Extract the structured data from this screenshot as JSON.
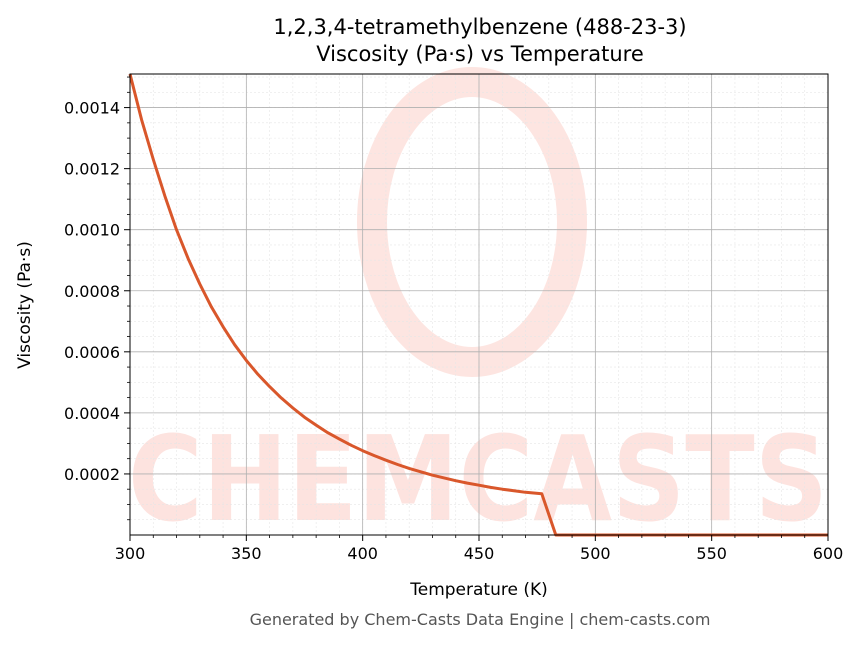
{
  "chart_data": {
    "type": "line",
    "title": "1,2,3,4-tetramethylbenzene (488-23-3)",
    "subtitle": "Viscosity (Pa·s) vs Temperature",
    "xlabel": "Temperature (K)",
    "ylabel": "Viscosity (Pa·s)",
    "xlim": [
      300,
      600
    ],
    "ylim": [
      0.0,
      0.00151
    ],
    "x_ticks": [
      300,
      350,
      400,
      450,
      500,
      550,
      600
    ],
    "x_tick_labels": [
      "300",
      "350",
      "400",
      "450",
      "500",
      "550",
      "600"
    ],
    "y_ticks": [
      0.0002,
      0.0004,
      0.0006,
      0.0008,
      0.001,
      0.0012,
      0.0014
    ],
    "y_tick_labels": [
      "0.0002",
      "0.0004",
      "0.0006",
      "0.0008",
      "0.0010",
      "0.0012",
      "0.0014"
    ],
    "grid": true,
    "series": [
      {
        "color": "#d9572b",
        "x": [
          300,
          305,
          310,
          315,
          320,
          325,
          330,
          335,
          340,
          345,
          350,
          355,
          360,
          365,
          370,
          375,
          380,
          385,
          390,
          395,
          400,
          405,
          410,
          415,
          420,
          425,
          430,
          435,
          440,
          445,
          450,
          455,
          460,
          465,
          470,
          477,
          483,
          490,
          500,
          520,
          540,
          560,
          580,
          600
        ],
        "y": [
          0.00151,
          0.00136,
          0.00123,
          0.00111,
          0.001,
          0.000905,
          0.000822,
          0.000747,
          0.000682,
          0.000623,
          0.000572,
          0.000526,
          0.000486,
          0.000449,
          0.000416,
          0.000386,
          0.00036,
          0.000335,
          0.000314,
          0.000294,
          0.000276,
          0.00026,
          0.000245,
          0.000231,
          0.000218,
          0.000207,
          0.000196,
          0.000187,
          0.000178,
          0.00017,
          0.000163,
          0.000156,
          0.00015,
          0.000145,
          0.00014,
          0.000135,
          0.0,
          0.0,
          0.0,
          0.0,
          0.0,
          0.0,
          0.0,
          0.0
        ]
      }
    ]
  },
  "watermark": {
    "text": "CHEMCASTS",
    "color": "#fde0dc"
  },
  "footer": {
    "text": "Generated by Chem-Casts Data Engine | chem-casts.com"
  }
}
